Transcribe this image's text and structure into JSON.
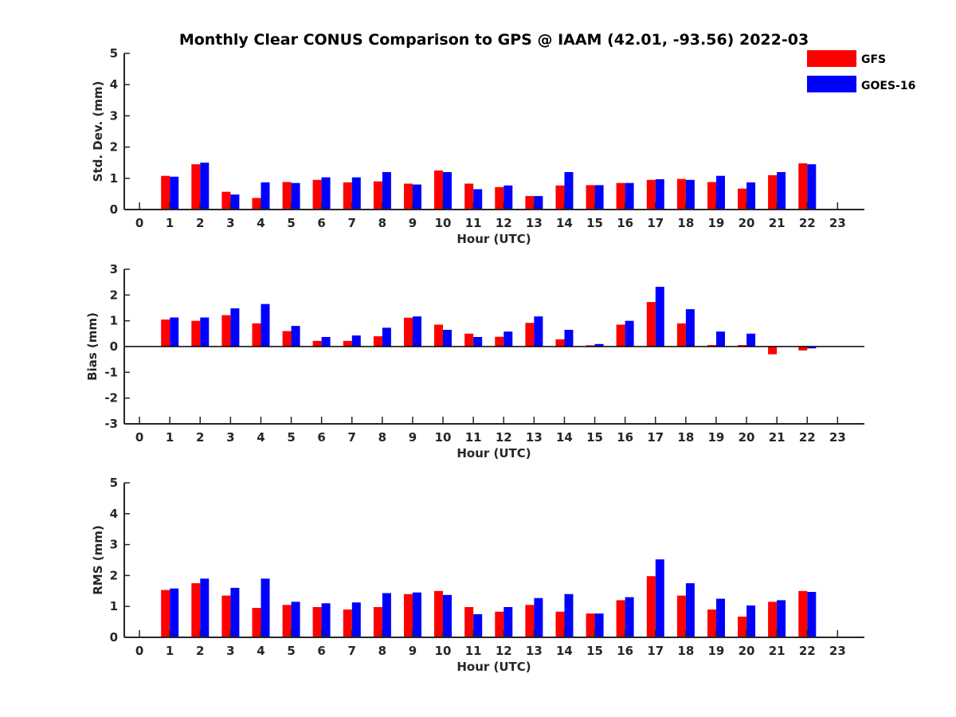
{
  "title": "Monthly Clear CONUS Comparison to GPS @ IAAM (42.01, -93.56) 2022-03",
  "legend": [
    {
      "name": "GFS",
      "color": "#ff0000"
    },
    {
      "name": "GOES-16",
      "color": "#0000ff"
    }
  ],
  "chart_data": [
    {
      "type": "bar",
      "categories": [
        "0",
        "1",
        "2",
        "3",
        "4",
        "5",
        "6",
        "7",
        "8",
        "9",
        "10",
        "11",
        "12",
        "13",
        "14",
        "15",
        "16",
        "17",
        "18",
        "19",
        "20",
        "21",
        "22",
        "23"
      ],
      "xlabel": "Hour (UTC)",
      "ylabel": "Std. Dev. (mm)",
      "ylim": [
        0,
        5
      ],
      "yticks": [
        0,
        1,
        2,
        3,
        4,
        5
      ],
      "series": [
        {
          "name": "GFS",
          "color": "#ff0000",
          "values": [
            null,
            1.08,
            1.45,
            0.57,
            0.37,
            0.88,
            0.95,
            0.87,
            0.9,
            0.83,
            1.25,
            0.83,
            0.72,
            0.43,
            0.77,
            0.78,
            0.85,
            0.95,
            0.98,
            0.88,
            0.67,
            1.1,
            1.48,
            null
          ]
        },
        {
          "name": "GOES-16",
          "color": "#0000ff",
          "values": [
            null,
            1.05,
            1.5,
            0.48,
            0.87,
            0.85,
            1.03,
            1.03,
            1.2,
            0.8,
            1.2,
            0.65,
            0.77,
            0.43,
            1.2,
            0.78,
            0.85,
            0.97,
            0.95,
            1.08,
            0.87,
            1.2,
            1.45,
            null
          ]
        }
      ]
    },
    {
      "type": "bar",
      "categories": [
        "0",
        "1",
        "2",
        "3",
        "4",
        "5",
        "6",
        "7",
        "8",
        "9",
        "10",
        "11",
        "12",
        "13",
        "14",
        "15",
        "16",
        "17",
        "18",
        "19",
        "20",
        "21",
        "22",
        "23"
      ],
      "xlabel": "Hour (UTC)",
      "ylabel": "Bias (mm)",
      "ylim": [
        -3,
        3
      ],
      "yticks": [
        -3,
        -2,
        -1,
        0,
        1,
        2,
        3
      ],
      "series": [
        {
          "name": "GFS",
          "color": "#ff0000",
          "values": [
            null,
            1.05,
            1.0,
            1.22,
            0.9,
            0.6,
            0.22,
            0.22,
            0.4,
            1.12,
            0.85,
            0.5,
            0.38,
            0.92,
            0.28,
            0.05,
            0.85,
            1.73,
            0.9,
            0.06,
            0.06,
            -0.3,
            -0.15,
            null
          ]
        },
        {
          "name": "GOES-16",
          "color": "#0000ff",
          "values": [
            null,
            1.13,
            1.13,
            1.48,
            1.65,
            0.8,
            0.37,
            0.43,
            0.73,
            1.17,
            0.65,
            0.37,
            0.58,
            1.17,
            0.65,
            0.1,
            1.0,
            2.32,
            1.45,
            0.58,
            0.5,
            0.02,
            -0.07,
            null
          ]
        }
      ]
    },
    {
      "type": "bar",
      "categories": [
        "0",
        "1",
        "2",
        "3",
        "4",
        "5",
        "6",
        "7",
        "8",
        "9",
        "10",
        "11",
        "12",
        "13",
        "14",
        "15",
        "16",
        "17",
        "18",
        "19",
        "20",
        "21",
        "22",
        "23"
      ],
      "xlabel": "Hour (UTC)",
      "ylabel": "RMS (mm)",
      "ylim": [
        0,
        5
      ],
      "yticks": [
        0,
        1,
        2,
        3,
        4,
        5
      ],
      "series": [
        {
          "name": "GFS",
          "color": "#ff0000",
          "values": [
            null,
            1.53,
            1.75,
            1.35,
            0.95,
            1.05,
            0.98,
            0.9,
            0.98,
            1.4,
            1.5,
            0.98,
            0.83,
            1.05,
            0.83,
            0.77,
            1.2,
            1.98,
            1.35,
            0.9,
            0.67,
            1.15,
            1.5,
            null
          ]
        },
        {
          "name": "GOES-16",
          "color": "#0000ff",
          "values": [
            null,
            1.58,
            1.9,
            1.6,
            1.9,
            1.15,
            1.1,
            1.13,
            1.43,
            1.45,
            1.37,
            0.75,
            0.98,
            1.27,
            1.4,
            0.77,
            1.3,
            2.52,
            1.75,
            1.25,
            1.03,
            1.2,
            1.47,
            null
          ]
        }
      ]
    }
  ]
}
